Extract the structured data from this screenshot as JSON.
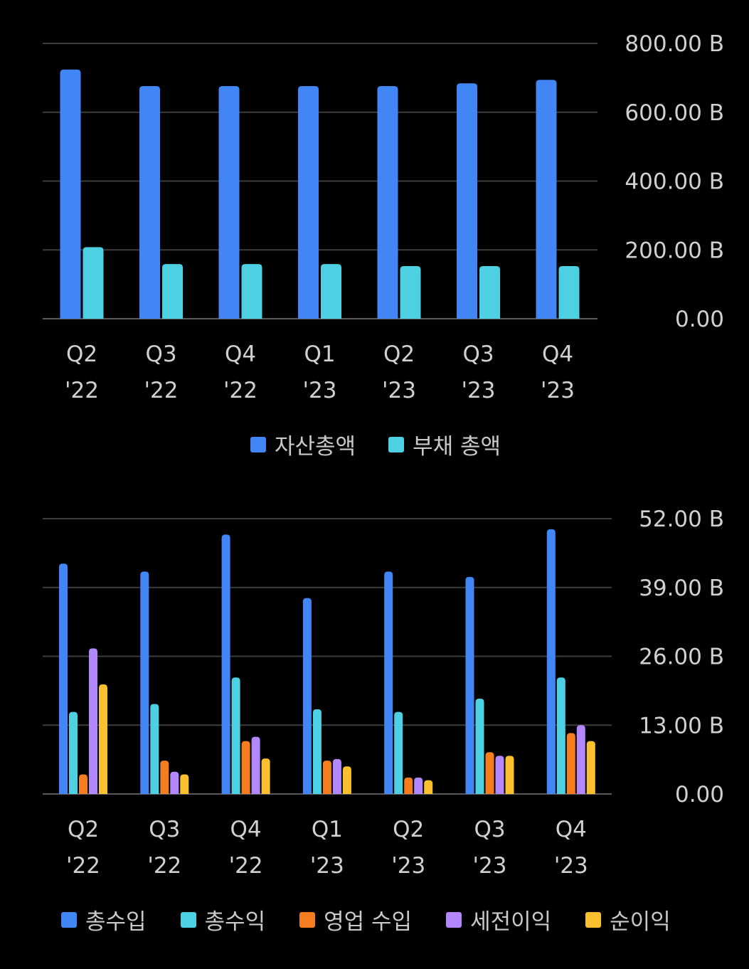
{
  "chart_data": [
    {
      "type": "bar",
      "categories": [
        [
          "Q2",
          "'22"
        ],
        [
          "Q3",
          "'22"
        ],
        [
          "Q4",
          "'22"
        ],
        [
          "Q1",
          "'23"
        ],
        [
          "Q2",
          "'23"
        ],
        [
          "Q3",
          "'23"
        ],
        [
          "Q4",
          "'23"
        ]
      ],
      "series": [
        {
          "name": "자산총액",
          "color": "#4286f5",
          "values": [
            724,
            676,
            676,
            676,
            676,
            684,
            694
          ]
        },
        {
          "name": "부채 총액",
          "color": "#4dd0e1",
          "values": [
            208,
            159,
            159,
            159,
            153,
            153,
            153
          ]
        }
      ],
      "yticks": [
        "0.00",
        "200.00 B",
        "400.00 B",
        "600.00 B",
        "800.00 B"
      ],
      "ylim": [
        0,
        800
      ],
      "yaxis_position": "right",
      "legend_position": "bottom",
      "grid": true
    },
    {
      "type": "bar",
      "categories": [
        [
          "Q2",
          "'22"
        ],
        [
          "Q3",
          "'22"
        ],
        [
          "Q4",
          "'22"
        ],
        [
          "Q1",
          "'23"
        ],
        [
          "Q2",
          "'23"
        ],
        [
          "Q3",
          "'23"
        ],
        [
          "Q4",
          "'23"
        ]
      ],
      "series": [
        {
          "name": "총수입",
          "color": "#4286f5",
          "values": [
            43.5,
            42,
            49,
            37,
            42,
            41,
            50
          ]
        },
        {
          "name": "총수익",
          "color": "#4dd0e1",
          "values": [
            15.5,
            17,
            22,
            16,
            15.5,
            18,
            22
          ]
        },
        {
          "name": "영업 수입",
          "color": "#f57c1f",
          "values": [
            3.7,
            6.3,
            10,
            6.3,
            3.1,
            7.9,
            11.5
          ]
        },
        {
          "name": "세전이익",
          "color": "#b388ff",
          "values": [
            27.5,
            4.2,
            10.8,
            6.6,
            3.1,
            7.2,
            13
          ]
        },
        {
          "name": "순이익",
          "color": "#fbc02d",
          "values": [
            20.7,
            3.7,
            6.7,
            5.2,
            2.6,
            7.2,
            10
          ]
        }
      ],
      "yticks": [
        "0.00",
        "13.00 B",
        "26.00 B",
        "39.00 B",
        "52.00 B"
      ],
      "ylim": [
        0,
        52
      ],
      "yaxis_position": "right",
      "legend_position": "bottom",
      "grid": true
    }
  ]
}
